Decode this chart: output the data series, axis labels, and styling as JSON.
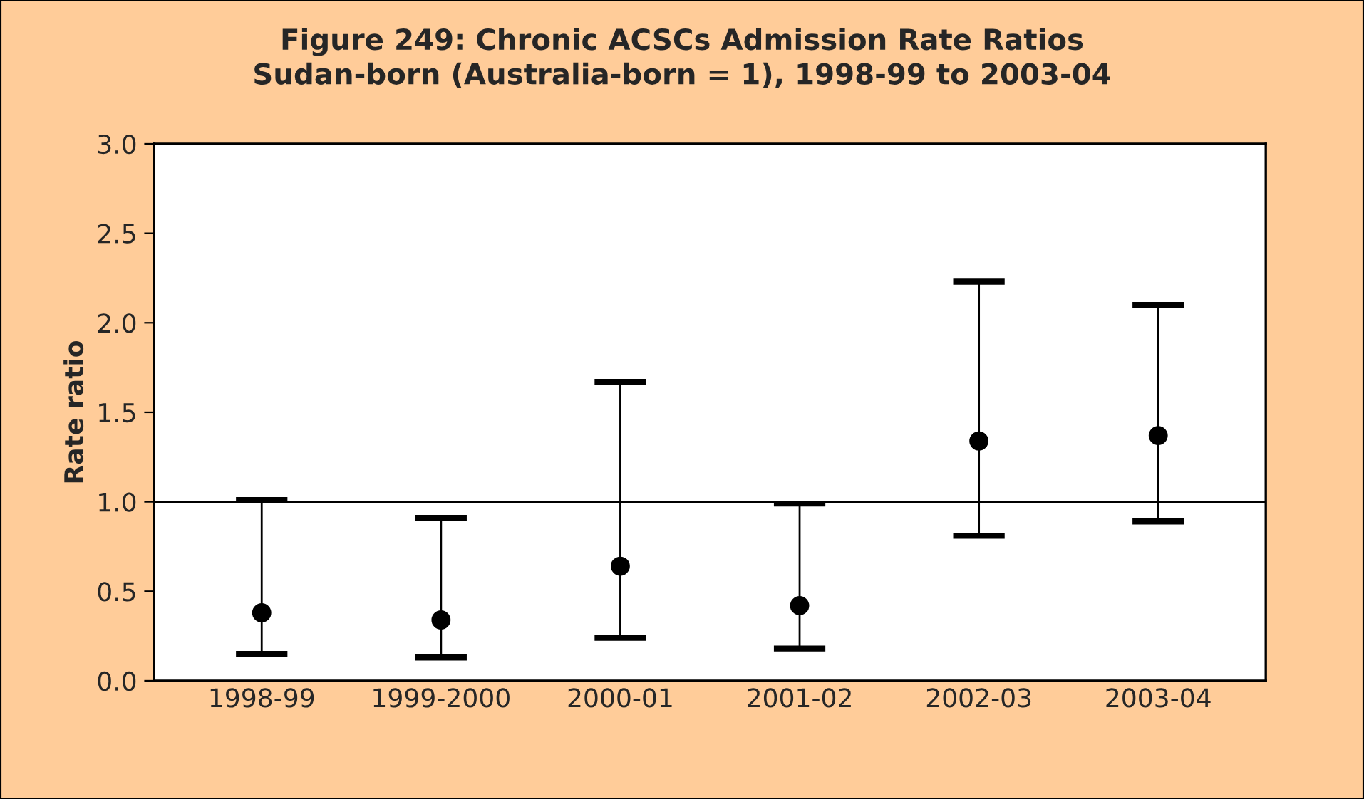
{
  "chart_data": {
    "type": "scatter",
    "title": "Figure 249: Chronic ACSCs Admission Rate Ratios\nSudan-born (Australia-born = 1), 1998-99 to 2003-04",
    "ylabel": "Rate ratio",
    "categories": [
      "1998-99",
      "1999-2000",
      "2000-01",
      "2001-02",
      "2002-03",
      "2003-04"
    ],
    "series": [
      {
        "color": "#000000",
        "marker": "circle",
        "values": [
          0.38,
          0.34,
          0.64,
          0.42,
          1.34,
          1.37
        ],
        "errors": [
          [
            0.15,
            1.01
          ],
          [
            0.13,
            0.91
          ],
          [
            0.24,
            1.67
          ],
          [
            0.18,
            0.99
          ],
          [
            0.81,
            2.23
          ],
          [
            0.89,
            2.1
          ]
        ]
      }
    ],
    "ylim": [
      0,
      3
    ],
    "yticks": [
      {
        "value": 0,
        "label": "0.0"
      },
      {
        "value": 0.5,
        "label": "0.5"
      },
      {
        "value": 1,
        "label": "1.0"
      },
      {
        "value": 1.5,
        "label": "1.5"
      },
      {
        "value": 2,
        "label": "2.0"
      },
      {
        "value": 2.5,
        "label": "2.5"
      },
      {
        "value": 3,
        "label": "3.0"
      }
    ],
    "ref_lines": [
      {
        "axis": "y",
        "value": 1,
        "color": "#000000"
      }
    ],
    "grid": false,
    "legend": false
  }
}
